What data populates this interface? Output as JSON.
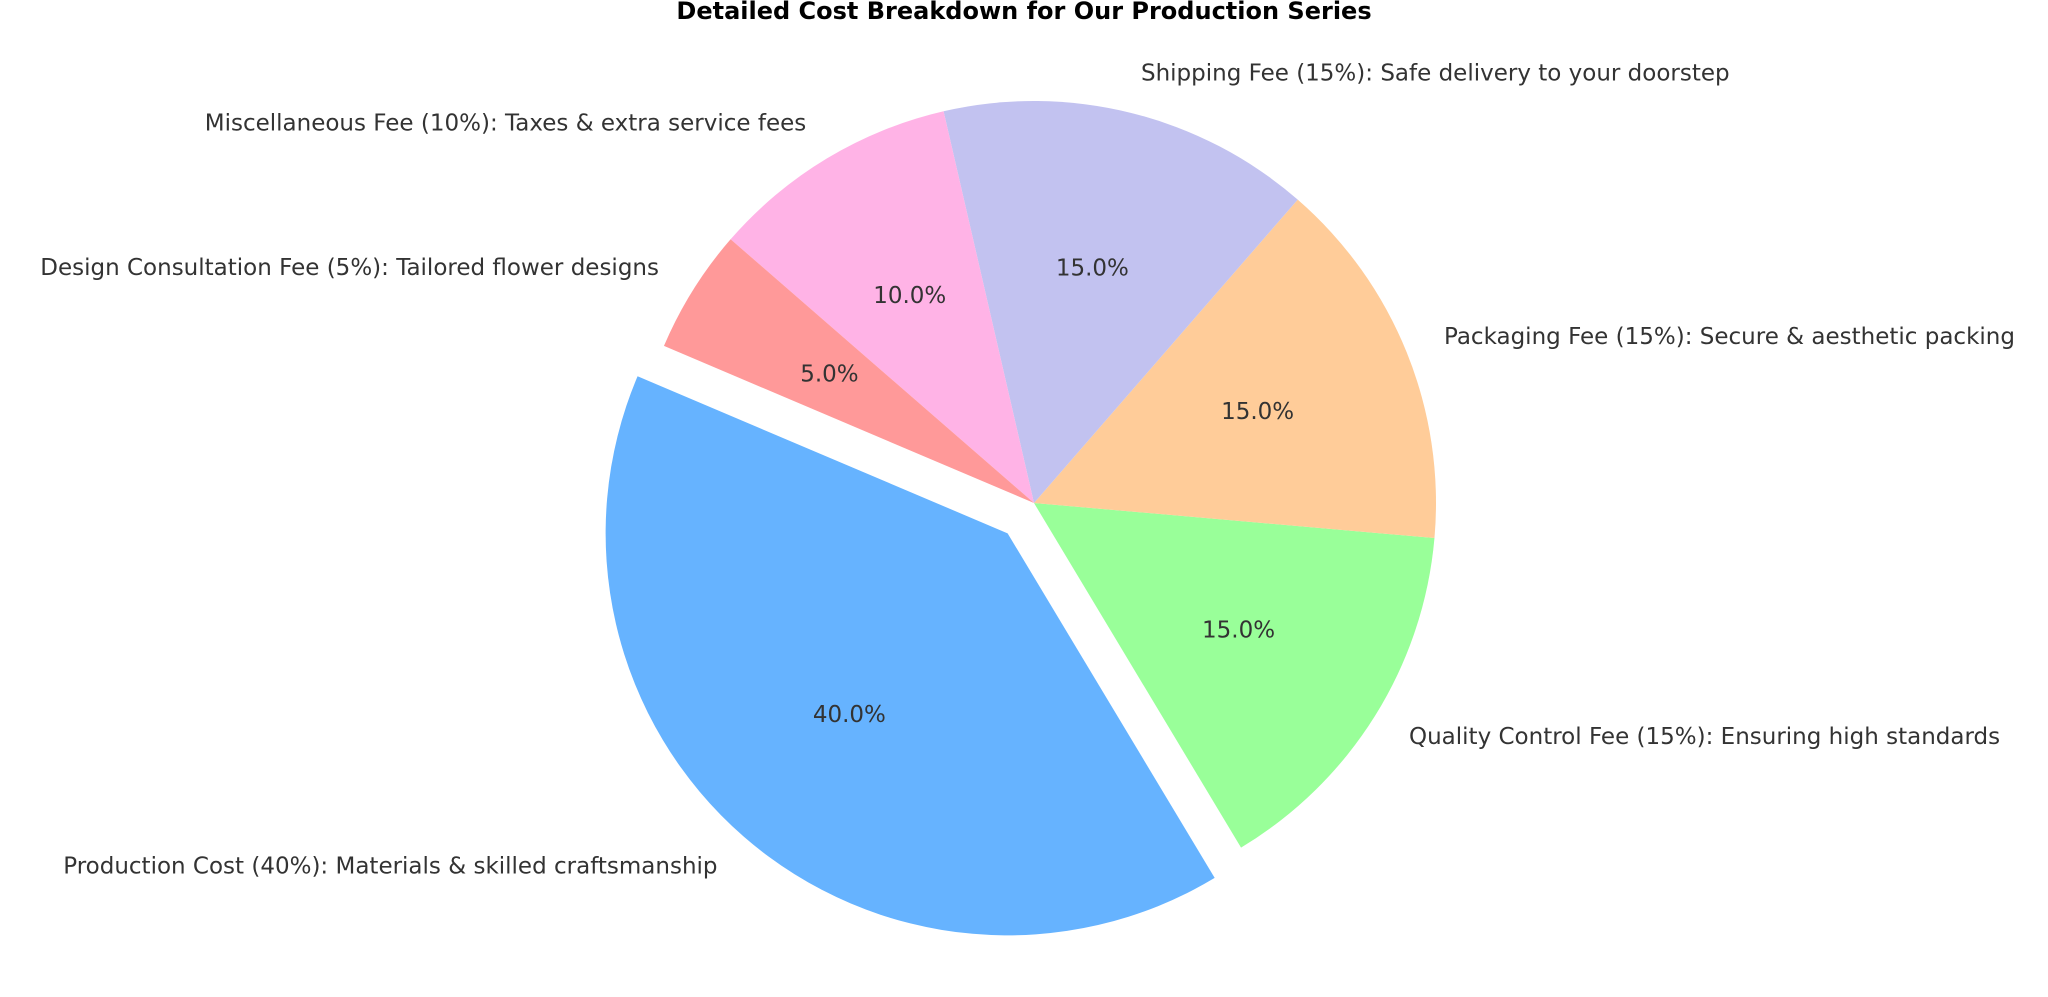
{
  "chart_data": {
    "type": "pie",
    "title": "Detailed Cost Breakdown for Our Production Series",
    "categories": [
      "Production Cost (40%): Materials & skilled craftsmanship",
      "Quality Control Fee (15%): Ensuring high standards",
      "Packaging Fee (15%): Secure & aesthetic packing",
      "Shipping Fee (15%): Safe delivery to your doorstep",
      "Miscellaneous Fee (10%): Taxes & extra service fees",
      "Design Consultation Fee (5%): Tailored flower designs"
    ],
    "values": [
      40,
      15,
      15,
      15,
      10,
      5
    ],
    "value_labels": [
      "40.0%",
      "15.0%",
      "15.0%",
      "15.0%",
      "10.0%",
      "5.0%"
    ],
    "colors": [
      "#66b3ff",
      "#99ff99",
      "#ffcc99",
      "#c2c2f0",
      "#ffb3e6",
      "#ff9999"
    ],
    "explode": [
      0.1,
      0,
      0,
      0,
      0,
      0
    ],
    "start_angle": 157
  }
}
